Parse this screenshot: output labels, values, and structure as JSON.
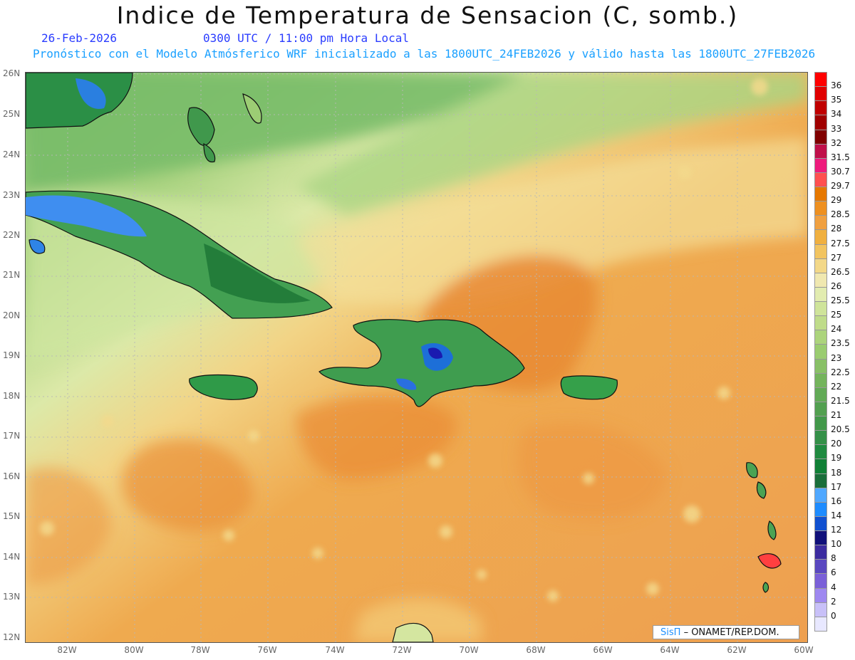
{
  "header": {
    "title": "Indice de Temperatura de Sensacion (C, somb.)",
    "date": "26-Feb-2026",
    "time": "0300 UTC / 11:00 pm Hora Local",
    "model_info": "Pronóstico con el Modelo Atmósferico WRF inicializado a las 1800UTC_24FEB2026 y válido hasta las  1800UTC_27FEB2026"
  },
  "map": {
    "lat_labels": [
      "26N",
      "25N",
      "24N",
      "23N",
      "22N",
      "21N",
      "20N",
      "19N",
      "18N",
      "17N",
      "16N",
      "15N",
      "14N",
      "13N",
      "12N"
    ],
    "lon_labels": [
      "82W",
      "80W",
      "78W",
      "76W",
      "74W",
      "72W",
      "70W",
      "68W",
      "66W",
      "64W",
      "62W",
      "60W"
    ],
    "lat_range": [
      12,
      26
    ],
    "lon_range": [
      -83.2,
      -60
    ],
    "grid": true
  },
  "colorbar": {
    "levels": [
      "36",
      "35",
      "34",
      "33",
      "32",
      "31.5",
      "30.7",
      "29.7",
      "29",
      "28.5",
      "28",
      "27.5",
      "27",
      "26.5",
      "26",
      "25.5",
      "25",
      "24",
      "23.5",
      "23",
      "22.5",
      "22",
      "21.5",
      "21",
      "20.5",
      "20",
      "19",
      "18",
      "17",
      "16",
      "14",
      "12",
      "10",
      "8",
      "6",
      "4",
      "2",
      "0"
    ],
    "colors": [
      "#ff0000",
      "#e00000",
      "#c00000",
      "#a00000",
      "#800000",
      "#c0104a",
      "#ee1b7c",
      "#ff5050",
      "#e67800",
      "#ee9020",
      "#f0a040",
      "#f0b040",
      "#f2c460",
      "#f3d888",
      "#f0e8b0",
      "#e2ecb0",
      "#cfe49a",
      "#bfdc8a",
      "#acd47c",
      "#9acc70",
      "#88c066",
      "#74b45c",
      "#62aa56",
      "#52a050",
      "#42984a",
      "#349048",
      "#208a40",
      "#108036",
      "#1a6e3a",
      "#50a8ff",
      "#1e8cff",
      "#1050d0",
      "#10107a",
      "#3c2ca0",
      "#5a48c0",
      "#7a60d8",
      "#9e88f0",
      "#c8c0f8",
      "#e8e8ff"
    ]
  },
  "credit": {
    "system": "SisΠ",
    "org": "– ONAMET/REP.DOM."
  }
}
